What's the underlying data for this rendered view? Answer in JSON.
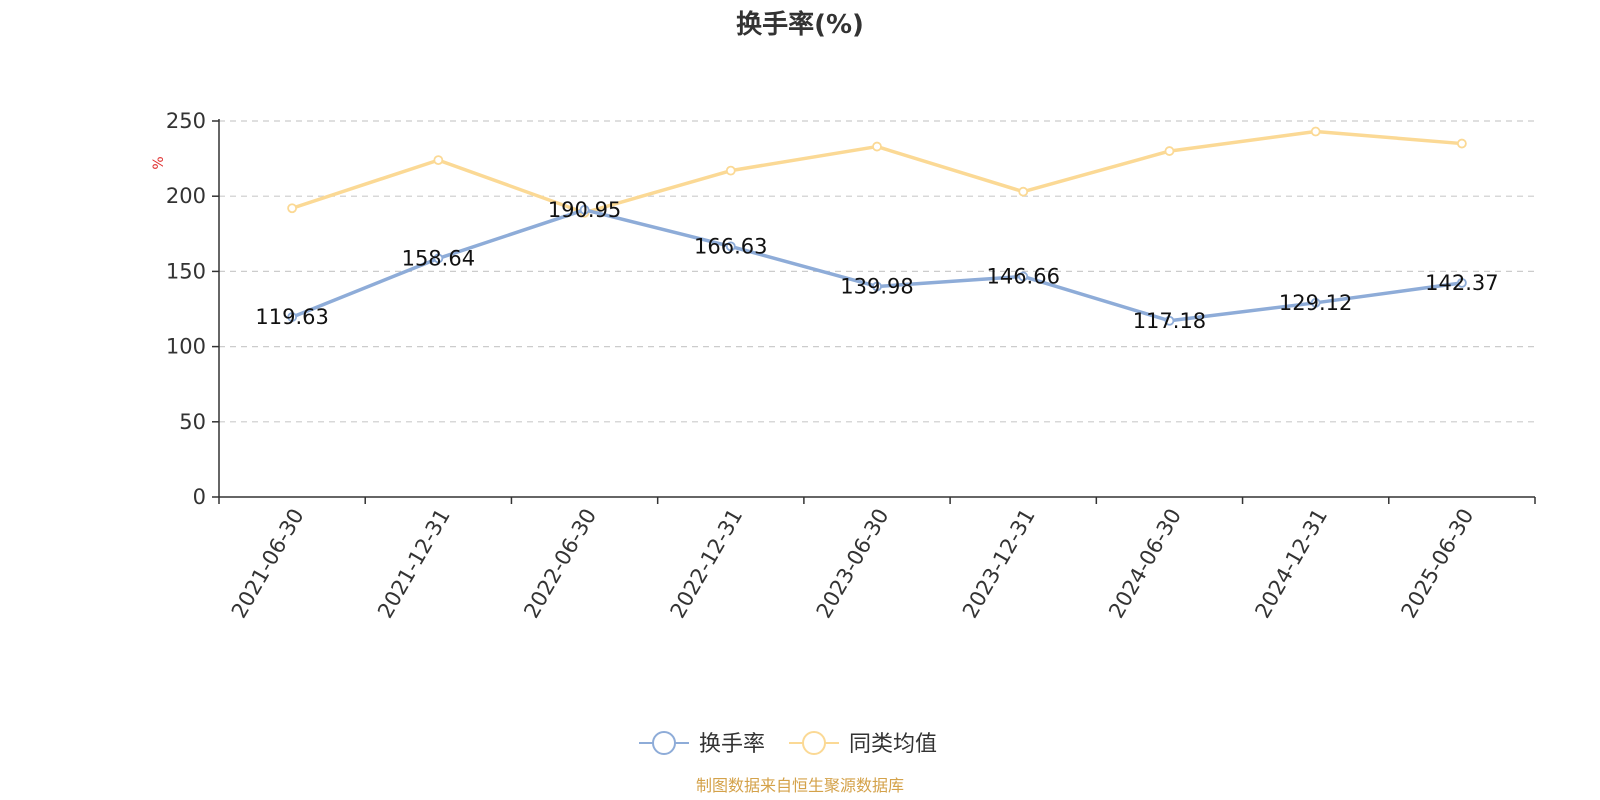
{
  "chart_data": {
    "type": "line",
    "title": "换手率(%)",
    "ylabel": "%",
    "xlabel": "",
    "ylim": [
      0,
      250
    ],
    "yticks": [
      0,
      50,
      100,
      150,
      200,
      250
    ],
    "grid": true,
    "legend_position": "bottom",
    "categories": [
      "2021-06-30",
      "2021-12-31",
      "2022-06-30",
      "2022-12-31",
      "2023-06-30",
      "2023-12-31",
      "2024-06-30",
      "2024-12-31",
      "2025-06-30"
    ],
    "series": [
      {
        "name": "换手率",
        "color": "#8eacd8",
        "show_labels": true,
        "values": [
          119.63,
          158.64,
          190.95,
          166.63,
          139.98,
          146.66,
          117.18,
          129.12,
          142.37
        ]
      },
      {
        "name": "同类均值",
        "color": "#fbd995",
        "show_labels": false,
        "values": [
          192,
          224,
          189,
          217,
          233,
          203,
          230,
          243,
          235
        ]
      }
    ]
  },
  "source": {
    "text": "制图数据来自恒生聚源数据库",
    "color": "#d4a24a"
  },
  "colors": {
    "unit_label": "#e03030",
    "axis": "#333333",
    "grid": "#cccccc"
  }
}
